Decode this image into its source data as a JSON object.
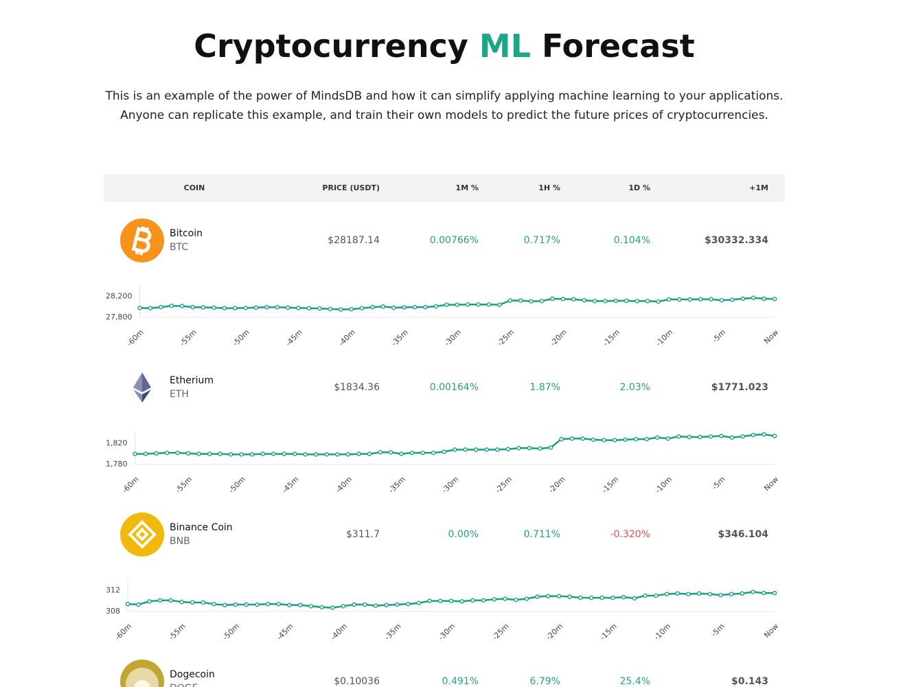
{
  "header": {
    "title": [
      "Cryptocurrency",
      "ML",
      "Forecast"
    ],
    "description": [
      "This is an example of the power of MindsDB and how it can simplify applying machine learning to your applications.",
      "Anyone can replicate this example, and train their own models to predict the future prices of cryptocurrencies."
    ]
  },
  "table": {
    "columns": [
      "COIN",
      "PRICE (USDT)",
      "1M %",
      "1H %",
      "1D %",
      "+1M"
    ],
    "rows": [
      {
        "name": "Bitcoin",
        "symbol": "BTC",
        "price": "$28187.14",
        "change_1m": "0.00766%",
        "change_1h": "0.717%",
        "change_1d": "0.104%",
        "forecast_1m": "$30332.334",
        "chart": {
          "type": "line",
          "color": "#1a9e80",
          "categories": [
            "-60m",
            null,
            null,
            null,
            null,
            "-55m",
            null,
            null,
            null,
            null,
            "-50m",
            null,
            null,
            null,
            null,
            "-45m",
            null,
            null,
            null,
            null,
            "-40m",
            null,
            null,
            null,
            null,
            "-35m",
            null,
            null,
            null,
            null,
            "-30m",
            null,
            null,
            null,
            null,
            "-25m",
            null,
            null,
            null,
            null,
            "-20m",
            null,
            null,
            null,
            null,
            "-15m",
            null,
            null,
            null,
            null,
            "-10m",
            null,
            null,
            null,
            null,
            "-5m",
            null,
            null,
            null,
            null,
            "Now"
          ],
          "values": [
            27980,
            27975,
            27995,
            28020,
            28015,
            27995,
            27990,
            27985,
            27975,
            27975,
            27980,
            27985,
            27995,
            27995,
            27985,
            27980,
            27975,
            27970,
            27960,
            27950,
            27955,
            27975,
            27995,
            28005,
            27985,
            27990,
            27995,
            27995,
            28010,
            28040,
            28040,
            28045,
            28045,
            28045,
            28040,
            28120,
            28120,
            28105,
            28110,
            28155,
            28150,
            28145,
            28125,
            28110,
            28110,
            28115,
            28115,
            28110,
            28110,
            28100,
            28140,
            28140,
            28140,
            28145,
            28145,
            28125,
            28135,
            28155,
            28170,
            28155,
            28150
          ],
          "ylim": [
            27800,
            28400
          ],
          "yticks": [
            {
              "value": 27800,
              "label": "27,800"
            },
            {
              "value": 28200,
              "label": "28,200"
            }
          ]
        }
      },
      {
        "name": "Etherium",
        "symbol": "ETH",
        "price": "$1834.36",
        "change_1m": "0.00164%",
        "change_1h": "1.87%",
        "change_1d": "2.03%",
        "forecast_1m": "$1771.023",
        "chart": {
          "type": "line",
          "color": "#1a9e80",
          "categories": [
            "-60m",
            null,
            null,
            null,
            null,
            "-55m",
            null,
            null,
            null,
            null,
            "-50m",
            null,
            null,
            null,
            null,
            "-45m",
            null,
            null,
            null,
            null,
            "-40m",
            null,
            null,
            null,
            null,
            "-35m",
            null,
            null,
            null,
            null,
            "-30m",
            null,
            null,
            null,
            null,
            "-25m",
            null,
            null,
            null,
            null,
            "-20m",
            null,
            null,
            null,
            null,
            "-15m",
            null,
            null,
            null,
            null,
            "-10m",
            null,
            null,
            null,
            null,
            "-5m",
            null,
            null,
            null,
            null,
            "Now"
          ],
          "values": [
            1800,
            1800,
            1801,
            1802,
            1802,
            1801,
            1800,
            1800,
            1800,
            1799,
            1799,
            1799,
            1800,
            1800,
            1800,
            1800,
            1799,
            1799,
            1799,
            1799,
            1799,
            1800,
            1800,
            1803,
            1803,
            1800,
            1802,
            1802,
            1802,
            1804,
            1808,
            1808,
            1808,
            1808,
            1808,
            1809,
            1811,
            1811,
            1810,
            1812,
            1828,
            1829,
            1829,
            1827,
            1826,
            1826,
            1827,
            1828,
            1828,
            1831,
            1829,
            1833,
            1832,
            1832,
            1833,
            1834,
            1831,
            1833,
            1836,
            1837,
            1834
          ],
          "ylim": [
            1780,
            1840
          ],
          "yticks": [
            {
              "value": 1780,
              "label": "1,780"
            },
            {
              "value": 1820,
              "label": "1,820"
            }
          ]
        }
      },
      {
        "name": "Binance Coin",
        "symbol": "BNB",
        "price": "$311.7",
        "change_1m": "0.00%",
        "change_1h": "0.711%",
        "change_1d": "-0.320%",
        "forecast_1m": "$346.104",
        "chart": {
          "type": "line",
          "color": "#1a9e80",
          "categories": [
            "-60m",
            null,
            null,
            null,
            null,
            "-55m",
            null,
            null,
            null,
            null,
            "-50m",
            null,
            null,
            null,
            null,
            "-45m",
            null,
            null,
            null,
            null,
            "-40m",
            null,
            null,
            null,
            null,
            "-35m",
            null,
            null,
            null,
            null,
            "-30m",
            null,
            null,
            null,
            null,
            "-25m",
            null,
            null,
            null,
            null,
            "-20m",
            null,
            null,
            null,
            null,
            "-15m",
            null,
            null,
            null,
            null,
            "-10m",
            null,
            null,
            null,
            null,
            "-5m",
            null,
            null,
            null,
            null,
            "Now"
          ],
          "values": [
            309.4,
            309.3,
            309.9,
            310.1,
            310.1,
            309.8,
            309.7,
            309.7,
            309.4,
            309.2,
            309.3,
            309.3,
            309.3,
            309.4,
            309.4,
            309.2,
            309.2,
            309.0,
            308.8,
            308.7,
            309.0,
            309.3,
            309.3,
            309.1,
            309.2,
            309.3,
            309.4,
            309.6,
            310.0,
            310.0,
            310.0,
            309.9,
            310.1,
            310.1,
            310.3,
            310.4,
            310.2,
            310.4,
            310.8,
            310.9,
            310.9,
            310.8,
            310.6,
            310.6,
            310.6,
            310.6,
            310.7,
            310.5,
            311.0,
            311.0,
            311.3,
            311.4,
            311.3,
            311.4,
            311.3,
            311.1,
            311.3,
            311.4,
            311.7,
            311.5,
            311.5
          ],
          "ylim": [
            308,
            314
          ],
          "yticks": [
            308,
            312
          ]
        }
      },
      {
        "name": "Dogecoin",
        "symbol": "DOGE",
        "price": "$0.10036",
        "change_1m": "0.491%",
        "change_1h": "6.79%",
        "change_1d": "25.4%",
        "forecast_1m": "$0.143"
      }
    ]
  }
}
